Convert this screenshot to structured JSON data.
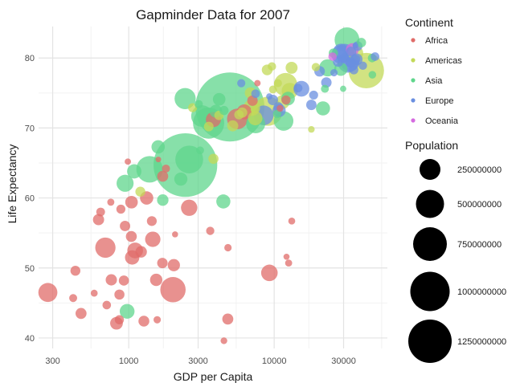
{
  "chart_data": {
    "type": "scatter",
    "title": "Gapminder Data for 2007",
    "xlabel": "GDP per Capita",
    "ylabel": "Life Expectancy",
    "x_scale": "log",
    "xlim": [
      240,
      60000
    ],
    "ylim": [
      38.5,
      84.5
    ],
    "x_ticks": [
      300,
      1000,
      3000,
      10000,
      30000
    ],
    "x_tick_labels": [
      "300",
      "1000",
      "3000",
      "10000",
      "30000"
    ],
    "y_ticks": [
      40,
      50,
      60,
      70,
      80
    ],
    "y_tick_labels": [
      "40",
      "50",
      "60",
      "70",
      "80"
    ],
    "grid": true,
    "legend_color": {
      "title": "Continent",
      "placement": "right",
      "entries": [
        {
          "label": "Africa",
          "color": "#e06c69"
        },
        {
          "label": "Americas",
          "color": "#c3d958"
        },
        {
          "label": "Asia",
          "color": "#5fd68c"
        },
        {
          "label": "Europe",
          "color": "#6a8fe0"
        },
        {
          "label": "Oceania",
          "color": "#d56be0"
        }
      ]
    },
    "legend_size": {
      "title": "Population",
      "placement": "right",
      "entries": [
        {
          "label": "250000000",
          "value": 250000000
        },
        {
          "label": "500000000",
          "value": 500000000
        },
        {
          "label": "750000000",
          "value": 750000000
        },
        {
          "label": "1000000000",
          "value": 1000000000
        },
        {
          "label": "1250000000",
          "value": 1250000000
        }
      ]
    },
    "series": [
      {
        "continent": "Africa",
        "points": [
          {
            "x": 6223,
            "y": 72.3,
            "pop": 33000000
          },
          {
            "x": 4797,
            "y": 42.7,
            "pop": 12400000
          },
          {
            "x": 1441,
            "y": 56.7,
            "pop": 8100000
          },
          {
            "x": 12570,
            "y": 50.7,
            "pop": 1600000
          },
          {
            "x": 1217,
            "y": 52.3,
            "pop": 14300000
          },
          {
            "x": 430,
            "y": 49.6,
            "pop": 8400000
          },
          {
            "x": 2042,
            "y": 50.4,
            "pop": 17700000
          },
          {
            "x": 706,
            "y": 44.7,
            "pop": 4400000
          },
          {
            "x": 1704,
            "y": 50.7,
            "pop": 10200000
          },
          {
            "x": 986,
            "y": 65.2,
            "pop": 700000
          },
          {
            "x": 278,
            "y": 46.5,
            "pop": 64600000
          },
          {
            "x": 3633,
            "y": 55.3,
            "pop": 3800000
          },
          {
            "x": 1545,
            "y": 48.3,
            "pop": 18000000
          },
          {
            "x": 2082,
            "y": 54.8,
            "pop": 500000
          },
          {
            "x": 5581,
            "y": 71.3,
            "pop": 80300000
          },
          {
            "x": 12154,
            "y": 51.6,
            "pop": 550000
          },
          {
            "x": 641,
            "y": 58.0,
            "pop": 4900000
          },
          {
            "x": 691,
            "y": 52.9,
            "pop": 76500000
          },
          {
            "x": 13206,
            "y": 56.7,
            "pop": 1450000
          },
          {
            "x": 753,
            "y": 59.4,
            "pop": 1700000
          },
          {
            "x": 1328,
            "y": 60.0,
            "pop": 22900000
          },
          {
            "x": 943,
            "y": 56.0,
            "pop": 9900000
          },
          {
            "x": 579,
            "y": 46.4,
            "pop": 1470000
          },
          {
            "x": 1463,
            "y": 54.1,
            "pop": 35600000
          },
          {
            "x": 1569,
            "y": 42.6,
            "pop": 2000000
          },
          {
            "x": 415,
            "y": 45.7,
            "pop": 3200000
          },
          {
            "x": 12057,
            "y": 74.0,
            "pop": 6000000
          },
          {
            "x": 1045,
            "y": 59.4,
            "pop": 19200000
          },
          {
            "x": 759,
            "y": 48.3,
            "pop": 13300000
          },
          {
            "x": 1042,
            "y": 54.5,
            "pop": 12000000
          },
          {
            "x": 1803,
            "y": 64.2,
            "pop": 3300000
          },
          {
            "x": 10957,
            "y": 72.8,
            "pop": 1250000
          },
          {
            "x": 3820,
            "y": 71.2,
            "pop": 33800000
          },
          {
            "x": 824,
            "y": 42.1,
            "pop": 20000000
          },
          {
            "x": 4811,
            "y": 52.9,
            "pop": 2100000
          },
          {
            "x": 620,
            "y": 56.9,
            "pop": 12900000
          },
          {
            "x": 2014,
            "y": 46.9,
            "pop": 135000000
          },
          {
            "x": 7670,
            "y": 76.4,
            "pop": 800000
          },
          {
            "x": 863,
            "y": 46.2,
            "pop": 8900000
          },
          {
            "x": 1598,
            "y": 65.5,
            "pop": 200000
          },
          {
            "x": 1712,
            "y": 63.1,
            "pop": 12300000
          },
          {
            "x": 862,
            "y": 42.6,
            "pop": 6100000
          },
          {
            "x": 926,
            "y": 48.2,
            "pop": 9100000
          },
          {
            "x": 9270,
            "y": 49.3,
            "pop": 44000000
          },
          {
            "x": 2602,
            "y": 58.6,
            "pop": 42300000
          },
          {
            "x": 4513,
            "y": 39.6,
            "pop": 1100000
          },
          {
            "x": 1107,
            "y": 52.5,
            "pop": 38100000
          },
          {
            "x": 883,
            "y": 58.4,
            "pop": 5700000
          },
          {
            "x": 7093,
            "y": 73.9,
            "pop": 10300000
          },
          {
            "x": 1056,
            "y": 51.5,
            "pop": 29200000
          },
          {
            "x": 1271,
            "y": 42.4,
            "pop": 11700000
          },
          {
            "x": 470,
            "y": 43.5,
            "pop": 12300000
          }
        ]
      },
      {
        "continent": "Americas",
        "points": [
          {
            "x": 12779,
            "y": 75.3,
            "pop": 40300000
          },
          {
            "x": 3822,
            "y": 65.6,
            "pop": 9100000
          },
          {
            "x": 9065,
            "y": 72.4,
            "pop": 190000000
          },
          {
            "x": 36319,
            "y": 80.7,
            "pop": 33400000
          },
          {
            "x": 13172,
            "y": 78.6,
            "pop": 16300000
          },
          {
            "x": 7007,
            "y": 72.9,
            "pop": 44200000
          },
          {
            "x": 9645,
            "y": 78.8,
            "pop": 4100000
          },
          {
            "x": 8948,
            "y": 78.3,
            "pop": 11400000
          },
          {
            "x": 6025,
            "y": 72.2,
            "pop": 9300000
          },
          {
            "x": 6873,
            "y": 75.0,
            "pop": 13800000
          },
          {
            "x": 5728,
            "y": 71.9,
            "pop": 6900000
          },
          {
            "x": 5186,
            "y": 70.3,
            "pop": 12600000
          },
          {
            "x": 1202,
            "y": 60.9,
            "pop": 8500000
          },
          {
            "x": 3548,
            "y": 70.2,
            "pop": 7500000
          },
          {
            "x": 7321,
            "y": 72.6,
            "pop": 2800000
          },
          {
            "x": 11978,
            "y": 76.2,
            "pop": 108700000
          },
          {
            "x": 2749,
            "y": 72.9,
            "pop": 5700000
          },
          {
            "x": 9809,
            "y": 75.5,
            "pop": 3200000
          },
          {
            "x": 4173,
            "y": 71.8,
            "pop": 6700000
          },
          {
            "x": 7409,
            "y": 71.4,
            "pop": 28700000
          },
          {
            "x": 19329,
            "y": 78.7,
            "pop": 3900000
          },
          {
            "x": 18009,
            "y": 69.8,
            "pop": 1100000
          },
          {
            "x": 42952,
            "y": 78.2,
            "pop": 301000000
          },
          {
            "x": 10611,
            "y": 76.4,
            "pop": 3400000
          },
          {
            "x": 11416,
            "y": 73.7,
            "pop": 26100000
          }
        ]
      },
      {
        "continent": "Asia",
        "points": [
          {
            "x": 975,
            "y": 43.8,
            "pop": 31900000
          },
          {
            "x": 29796,
            "y": 75.6,
            "pop": 700000
          },
          {
            "x": 1391,
            "y": 64.1,
            "pop": 150400000
          },
          {
            "x": 1714,
            "y": 59.7,
            "pop": 14100000
          },
          {
            "x": 4959,
            "y": 73.0,
            "pop": 1318700000
          },
          {
            "x": 39725,
            "y": 82.2,
            "pop": 6980000
          },
          {
            "x": 2452,
            "y": 64.7,
            "pop": 1110400000
          },
          {
            "x": 3541,
            "y": 70.7,
            "pop": 223500000
          },
          {
            "x": 11606,
            "y": 71.0,
            "pop": 69500000
          },
          {
            "x": 4471,
            "y": 59.5,
            "pop": 27500000
          },
          {
            "x": 25523,
            "y": 80.7,
            "pop": 6400000
          },
          {
            "x": 31656,
            "y": 82.6,
            "pop": 127500000
          },
          {
            "x": 4519,
            "y": 72.5,
            "pop": 6100000
          },
          {
            "x": 1593,
            "y": 67.3,
            "pop": 23300000
          },
          {
            "x": 23348,
            "y": 78.6,
            "pop": 49000000
          },
          {
            "x": 47307,
            "y": 77.6,
            "pop": 2500000
          },
          {
            "x": 10461,
            "y": 72.0,
            "pop": 3900000
          },
          {
            "x": 12452,
            "y": 74.2,
            "pop": 24800000
          },
          {
            "x": 3096,
            "y": 66.8,
            "pop": 2900000
          },
          {
            "x": 944,
            "y": 62.1,
            "pop": 47800000
          },
          {
            "x": 1091,
            "y": 63.8,
            "pop": 28900000
          },
          {
            "x": 22316,
            "y": 75.6,
            "pop": 3200000
          },
          {
            "x": 2606,
            "y": 65.5,
            "pop": 169300000
          },
          {
            "x": 3190,
            "y": 71.7,
            "pop": 91100000
          },
          {
            "x": 21655,
            "y": 72.8,
            "pop": 27600000
          },
          {
            "x": 47143,
            "y": 80.0,
            "pop": 4600000
          },
          {
            "x": 3970,
            "y": 72.4,
            "pop": 20400000
          },
          {
            "x": 4185,
            "y": 74.1,
            "pop": 19300000
          },
          {
            "x": 28718,
            "y": 78.4,
            "pop": 23200000
          },
          {
            "x": 7458,
            "y": 70.6,
            "pop": 65100000
          },
          {
            "x": 2442,
            "y": 74.2,
            "pop": 85300000
          },
          {
            "x": 3025,
            "y": 73.4,
            "pop": 4000000
          },
          {
            "x": 2281,
            "y": 62.7,
            "pop": 22200000
          }
        ]
      },
      {
        "continent": "Europe",
        "points": [
          {
            "x": 5937,
            "y": 76.4,
            "pop": 3600000
          },
          {
            "x": 36126,
            "y": 79.8,
            "pop": 8200000
          },
          {
            "x": 33693,
            "y": 79.4,
            "pop": 10400000
          },
          {
            "x": 7446,
            "y": 74.9,
            "pop": 4600000
          },
          {
            "x": 10681,
            "y": 73.0,
            "pop": 7300000
          },
          {
            "x": 14619,
            "y": 75.7,
            "pop": 4500000
          },
          {
            "x": 22833,
            "y": 76.5,
            "pop": 10200000
          },
          {
            "x": 35278,
            "y": 78.3,
            "pop": 5500000
          },
          {
            "x": 33207,
            "y": 79.3,
            "pop": 5200000
          },
          {
            "x": 30470,
            "y": 80.7,
            "pop": 61100000
          },
          {
            "x": 32170,
            "y": 79.4,
            "pop": 82400000
          },
          {
            "x": 27538,
            "y": 79.5,
            "pop": 10700000
          },
          {
            "x": 18009,
            "y": 73.3,
            "pop": 10000000
          },
          {
            "x": 36181,
            "y": 81.8,
            "pop": 300000
          },
          {
            "x": 40676,
            "y": 78.9,
            "pop": 4100000
          },
          {
            "x": 28570,
            "y": 80.5,
            "pop": 58100000
          },
          {
            "x": 9254,
            "y": 74.5,
            "pop": 700000
          },
          {
            "x": 36798,
            "y": 79.8,
            "pop": 16600000
          },
          {
            "x": 49357,
            "y": 80.2,
            "pop": 4600000
          },
          {
            "x": 15390,
            "y": 75.6,
            "pop": 38500000
          },
          {
            "x": 20510,
            "y": 78.1,
            "pop": 10600000
          },
          {
            "x": 10808,
            "y": 72.5,
            "pop": 22300000
          },
          {
            "x": 9787,
            "y": 74.0,
            "pop": 10200000
          },
          {
            "x": 18678,
            "y": 74.7,
            "pop": 5400000
          },
          {
            "x": 25768,
            "y": 77.9,
            "pop": 2000000
          },
          {
            "x": 28821,
            "y": 80.9,
            "pop": 40400000
          },
          {
            "x": 33860,
            "y": 80.9,
            "pop": 9000000
          },
          {
            "x": 37506,
            "y": 81.7,
            "pop": 7500000
          },
          {
            "x": 8458,
            "y": 71.8,
            "pop": 71200000
          },
          {
            "x": 33203,
            "y": 79.4,
            "pop": 60800000
          }
        ]
      },
      {
        "continent": "Oceania",
        "points": [
          {
            "x": 34435,
            "y": 81.2,
            "pop": 20400000
          },
          {
            "x": 25185,
            "y": 80.2,
            "pop": 4100000
          }
        ]
      }
    ]
  }
}
